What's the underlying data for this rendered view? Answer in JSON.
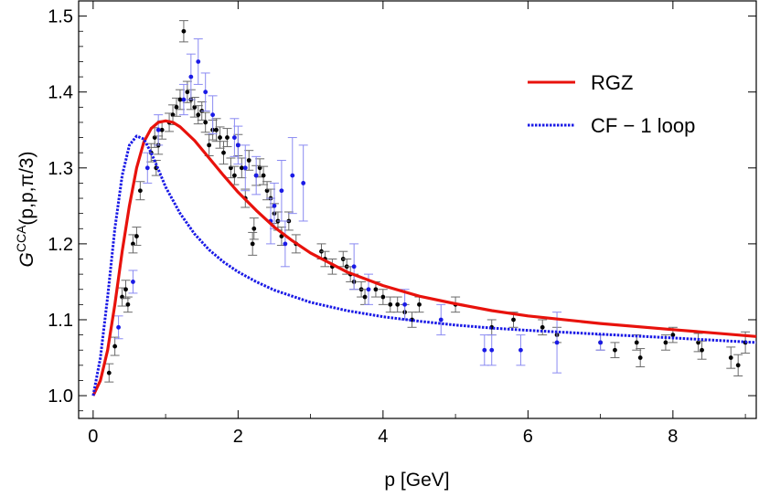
{
  "chart_data": {
    "type": "scatter",
    "title": "",
    "xlabel": "p [GeV]",
    "ylabel": {
      "base": "G",
      "sup": "CCA",
      "args": "(p,p,π/3)"
    },
    "xlim": [
      -0.2,
      9.15
    ],
    "ylim": [
      0.97,
      1.52
    ],
    "xticks": [
      0,
      2,
      4,
      6,
      8
    ],
    "yticks": [
      1.0,
      1.1,
      1.2,
      1.3,
      1.4,
      1.5
    ],
    "xtick_labels": [
      "0",
      "2",
      "4",
      "6",
      "8"
    ],
    "ytick_labels": [
      "1.0",
      "1.1",
      "1.2",
      "1.3",
      "1.4",
      "1.5"
    ],
    "grid": false,
    "legend_position": "top-right",
    "series": [
      {
        "name": "RGZ",
        "kind": "line",
        "color": "#e8120c",
        "dash": "solid",
        "x": [
          0,
          0.1,
          0.2,
          0.3,
          0.4,
          0.5,
          0.6,
          0.7,
          0.8,
          0.9,
          1.0,
          1.1,
          1.2,
          1.4,
          1.6,
          1.8,
          2.0,
          2.25,
          2.5,
          2.75,
          3.0,
          3.5,
          4.0,
          4.5,
          5.0,
          5.5,
          6.0,
          7.0,
          8.0,
          9.15
        ],
        "y": [
          1.0,
          1.02,
          1.06,
          1.12,
          1.19,
          1.25,
          1.3,
          1.334,
          1.352,
          1.36,
          1.362,
          1.36,
          1.354,
          1.336,
          1.313,
          1.29,
          1.268,
          1.244,
          1.222,
          1.204,
          1.188,
          1.163,
          1.145,
          1.131,
          1.121,
          1.112,
          1.105,
          1.095,
          1.087,
          1.078
        ]
      },
      {
        "name": "CF − 1 loop",
        "kind": "line",
        "color": "#1a1ae6",
        "dash": "dotted",
        "x": [
          0,
          0.1,
          0.2,
          0.3,
          0.4,
          0.5,
          0.6,
          0.7,
          0.8,
          0.9,
          1.0,
          1.2,
          1.4,
          1.6,
          1.8,
          2.0,
          2.25,
          2.5,
          3.0,
          3.5,
          4.0,
          4.5,
          5.0,
          5.5,
          6.0,
          7.0,
          8.0,
          9.15
        ],
        "y": [
          1.0,
          1.05,
          1.13,
          1.22,
          1.29,
          1.33,
          1.342,
          1.338,
          1.32,
          1.298,
          1.275,
          1.24,
          1.213,
          1.192,
          1.176,
          1.163,
          1.15,
          1.139,
          1.123,
          1.112,
          1.104,
          1.098,
          1.093,
          1.089,
          1.086,
          1.081,
          1.076,
          1.07
        ]
      },
      {
        "name": "",
        "kind": "errorbar",
        "color": "#000000",
        "points": [
          [
            0.22,
            1.03,
            0.012
          ],
          [
            0.3,
            1.065,
            0.012
          ],
          [
            0.4,
            1.13,
            0.012
          ],
          [
            0.45,
            1.14,
            0.012
          ],
          [
            0.48,
            1.12,
            0.01
          ],
          [
            0.55,
            1.2,
            0.012
          ],
          [
            0.6,
            1.21,
            0.012
          ],
          [
            0.65,
            1.27,
            0.012
          ],
          [
            0.8,
            1.32,
            0.012
          ],
          [
            0.85,
            1.34,
            0.013
          ],
          [
            0.87,
            1.3,
            0.01
          ],
          [
            0.9,
            1.33,
            0.012
          ],
          [
            0.95,
            1.35,
            0.012
          ],
          [
            1.05,
            1.36,
            0.012
          ],
          [
            1.1,
            1.37,
            0.013
          ],
          [
            1.15,
            1.38,
            0.012
          ],
          [
            1.2,
            1.39,
            0.013
          ],
          [
            1.25,
            1.48,
            0.014
          ],
          [
            1.3,
            1.4,
            0.014
          ],
          [
            1.35,
            1.39,
            0.013
          ],
          [
            1.4,
            1.38,
            0.013
          ],
          [
            1.45,
            1.37,
            0.012
          ],
          [
            1.5,
            1.375,
            0.012
          ],
          [
            1.55,
            1.36,
            0.013
          ],
          [
            1.6,
            1.33,
            0.014
          ],
          [
            1.65,
            1.35,
            0.013
          ],
          [
            1.7,
            1.35,
            0.015
          ],
          [
            1.75,
            1.34,
            0.014
          ],
          [
            1.8,
            1.32,
            0.015
          ],
          [
            1.85,
            1.34,
            0.012
          ],
          [
            1.9,
            1.3,
            0.013
          ],
          [
            1.95,
            1.29,
            0.012
          ],
          [
            2.0,
            1.33,
            0.014
          ],
          [
            2.05,
            1.3,
            0.013
          ],
          [
            2.1,
            1.26,
            0.012
          ],
          [
            2.15,
            1.31,
            0.013
          ],
          [
            2.2,
            1.2,
            0.015
          ],
          [
            2.22,
            1.22,
            0.014
          ],
          [
            2.25,
            1.29,
            0.013
          ],
          [
            2.3,
            1.3,
            0.012
          ],
          [
            2.35,
            1.29,
            0.012
          ],
          [
            2.4,
            1.27,
            0.012
          ],
          [
            2.45,
            1.26,
            0.012
          ],
          [
            2.5,
            1.24,
            0.013
          ],
          [
            2.55,
            1.23,
            0.012
          ],
          [
            2.6,
            1.21,
            0.012
          ],
          [
            2.7,
            1.23,
            0.012
          ],
          [
            2.8,
            1.2,
            0.012
          ],
          [
            3.15,
            1.19,
            0.01
          ],
          [
            3.2,
            1.18,
            0.01
          ],
          [
            3.3,
            1.17,
            0.01
          ],
          [
            3.45,
            1.18,
            0.01
          ],
          [
            3.5,
            1.17,
            0.01
          ],
          [
            3.55,
            1.16,
            0.01
          ],
          [
            3.6,
            1.15,
            0.01
          ],
          [
            3.7,
            1.14,
            0.01
          ],
          [
            3.75,
            1.13,
            0.01
          ],
          [
            3.9,
            1.14,
            0.01
          ],
          [
            4.0,
            1.13,
            0.01
          ],
          [
            4.1,
            1.12,
            0.01
          ],
          [
            4.2,
            1.12,
            0.01
          ],
          [
            4.3,
            1.11,
            0.01
          ],
          [
            4.4,
            1.1,
            0.01
          ],
          [
            4.5,
            1.12,
            0.01
          ],
          [
            5.0,
            1.12,
            0.01
          ],
          [
            5.5,
            1.09,
            0.01
          ],
          [
            5.8,
            1.1,
            0.01
          ],
          [
            6.2,
            1.09,
            0.01
          ],
          [
            6.4,
            1.08,
            0.01
          ],
          [
            7.0,
            1.07,
            0.01
          ],
          [
            7.2,
            1.06,
            0.01
          ],
          [
            7.5,
            1.07,
            0.01
          ],
          [
            7.55,
            1.05,
            0.012
          ],
          [
            7.9,
            1.07,
            0.01
          ],
          [
            8.0,
            1.08,
            0.01
          ],
          [
            8.35,
            1.07,
            0.012
          ],
          [
            8.4,
            1.06,
            0.012
          ],
          [
            8.8,
            1.05,
            0.014
          ],
          [
            8.9,
            1.04,
            0.014
          ],
          [
            9.0,
            1.07,
            0.014
          ]
        ]
      },
      {
        "name": "",
        "kind": "errorbar",
        "color": "#1a1ae6",
        "points": [
          [
            0.35,
            1.09,
            0.015
          ],
          [
            0.55,
            1.15,
            0.015
          ],
          [
            0.75,
            1.3,
            0.02
          ],
          [
            0.9,
            1.35,
            0.02
          ],
          [
            1.25,
            1.39,
            0.02
          ],
          [
            1.35,
            1.42,
            0.03
          ],
          [
            1.45,
            1.44,
            0.03
          ],
          [
            1.55,
            1.4,
            0.025
          ],
          [
            1.65,
            1.37,
            0.025
          ],
          [
            1.95,
            1.34,
            0.025
          ],
          [
            2.0,
            1.33,
            0.025
          ],
          [
            2.1,
            1.3,
            0.03
          ],
          [
            2.25,
            1.29,
            0.025
          ],
          [
            2.45,
            1.23,
            0.03
          ],
          [
            2.5,
            1.25,
            0.03
          ],
          [
            2.6,
            1.27,
            0.04
          ],
          [
            2.65,
            1.2,
            0.03
          ],
          [
            2.75,
            1.29,
            0.05
          ],
          [
            2.9,
            1.28,
            0.05
          ],
          [
            3.6,
            1.17,
            0.03
          ],
          [
            3.8,
            1.14,
            0.02
          ],
          [
            4.3,
            1.12,
            0.02
          ],
          [
            4.8,
            1.1,
            0.02
          ],
          [
            5.4,
            1.06,
            0.02
          ],
          [
            5.5,
            1.06,
            0.02
          ],
          [
            5.9,
            1.06,
            0.02
          ],
          [
            6.4,
            1.07,
            0.04
          ],
          [
            7.0,
            1.07,
            0.01
          ]
        ]
      }
    ]
  }
}
